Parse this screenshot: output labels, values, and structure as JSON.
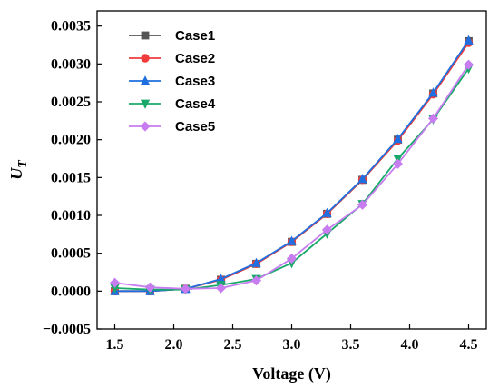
{
  "chart_data": {
    "type": "line",
    "title": "",
    "xlabel": "Voltage (V)",
    "ylabel": "U",
    "ylabel_subscript": "T",
    "xlim": [
      1.35,
      4.65
    ],
    "ylim": [
      -0.0005,
      0.0037
    ],
    "x_ticks": [
      1.5,
      2.0,
      2.5,
      3.0,
      3.5,
      4.0,
      4.5
    ],
    "x_tick_labels": [
      "1.5",
      "2.0",
      "2.5",
      "3.0",
      "3.5",
      "4.0",
      "4.5"
    ],
    "y_ticks": [
      -0.0005,
      0.0,
      0.0005,
      0.001,
      0.0015,
      0.002,
      0.0025,
      0.003,
      0.0035
    ],
    "y_tick_labels": [
      "−0.0005",
      "0.0000",
      "0.0005",
      "0.0010",
      "0.0015",
      "0.0020",
      "0.0025",
      "0.0030",
      "0.0035"
    ],
    "grid": false,
    "legend_position": "top-left",
    "x": [
      1.5,
      1.8,
      2.1,
      2.4,
      2.7,
      3.0,
      3.3,
      3.6,
      3.9,
      4.2,
      4.5
    ],
    "series": [
      {
        "name": "Case1",
        "color": "#555555",
        "marker": "square",
        "values": [
          0.0,
          0.0,
          3e-05,
          0.00015,
          0.00036,
          0.00065,
          0.00102,
          0.00147,
          0.002,
          0.00261,
          0.0033
        ]
      },
      {
        "name": "Case2",
        "color": "#ef3b3b",
        "marker": "circle",
        "values": [
          0.0,
          0.0,
          3e-05,
          0.00015,
          0.00036,
          0.00065,
          0.00102,
          0.00147,
          0.00199,
          0.0026,
          0.00328
        ]
      },
      {
        "name": "Case3",
        "color": "#1f6fe0",
        "marker": "triangle-up",
        "values": [
          0.0,
          0.0,
          3e-05,
          0.00016,
          0.00037,
          0.00066,
          0.00103,
          0.00148,
          0.00201,
          0.00262,
          0.00331
        ]
      },
      {
        "name": "Case4",
        "color": "#18a96a",
        "marker": "triangle-down",
        "values": [
          4e-05,
          2e-05,
          2e-05,
          8e-05,
          0.00016,
          0.00037,
          0.00076,
          0.00115,
          0.00175,
          0.00227,
          0.00294
        ]
      },
      {
        "name": "Case5",
        "color": "#c77cf0",
        "marker": "diamond",
        "values": [
          0.00011,
          5e-05,
          3e-05,
          4e-05,
          0.00014,
          0.00043,
          0.00081,
          0.00114,
          0.00168,
          0.00228,
          0.00299
        ]
      }
    ]
  }
}
